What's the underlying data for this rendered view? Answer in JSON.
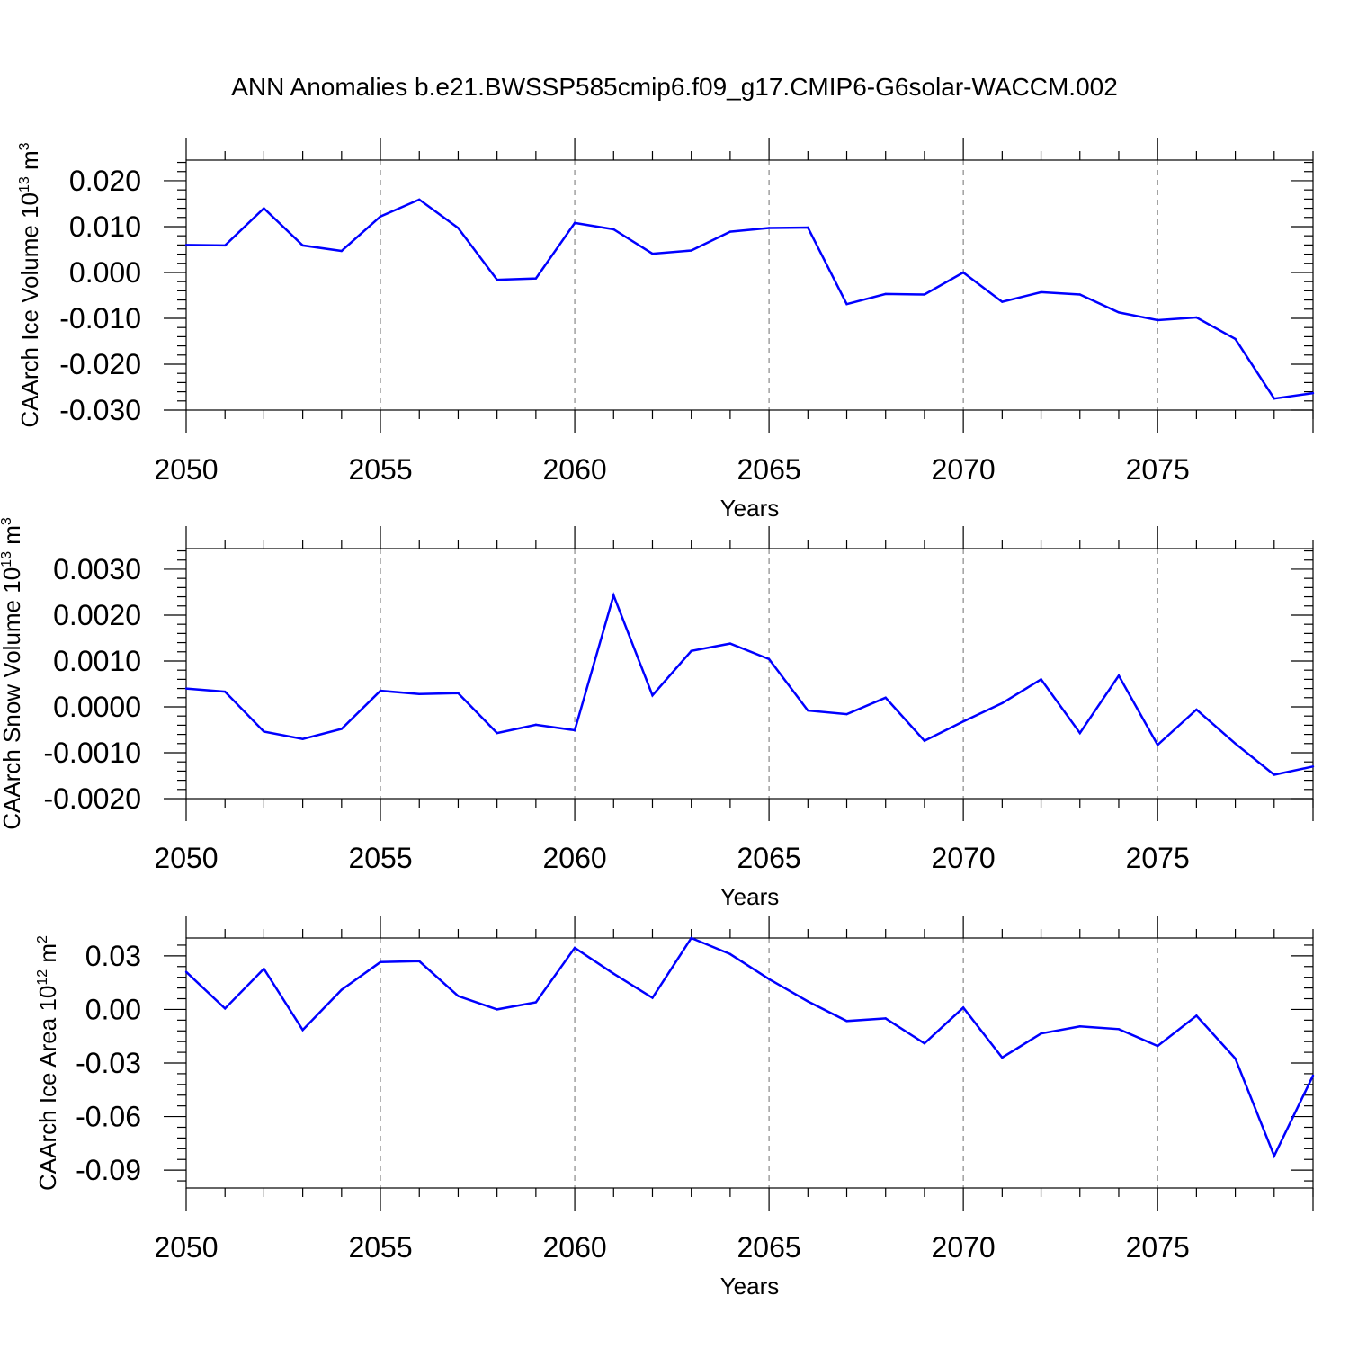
{
  "figure": {
    "title": "ANN Anomalies b.e21.BWSSP585cmip6.f09_g17.CMIP6-G6solar-WACCM.002"
  },
  "colors": {
    "series": "#0000ff",
    "grid": "#888888",
    "axes": "#000000"
  },
  "chart_data": [
    {
      "type": "line",
      "title": "ANN Anomalies b.e21.BWSSP585cmip6.f09_g17.CMIP6-G6solar-WACCM.002",
      "xlabel": "Years",
      "ylabel": "CAArch Ice Volume 10",
      "ylabel_exp": "13",
      "ylabel_unit": " m",
      "ylabel_unit_exp": "3",
      "xlim": [
        2050,
        2079
      ],
      "ylim": [
        -0.03,
        0.0245
      ],
      "xticks": [
        2050,
        2055,
        2060,
        2065,
        2070,
        2075
      ],
      "xtick_labels": [
        "2050",
        "2055",
        "2060",
        "2065",
        "2070",
        "2075"
      ],
      "yticks": [
        0.02,
        0.01,
        0.0,
        -0.01,
        -0.02,
        -0.03
      ],
      "ytick_labels": [
        "0.020",
        "0.010",
        "0.000",
        "-0.010",
        "-0.020",
        "-0.030"
      ],
      "grid": "vertical dashed at major x ticks",
      "x": [
        2050,
        2051,
        2052,
        2053,
        2054,
        2055,
        2056,
        2057,
        2058,
        2059,
        2060,
        2061,
        2062,
        2063,
        2064,
        2065,
        2066,
        2067,
        2068,
        2069,
        2070,
        2071,
        2072,
        2073,
        2074,
        2075,
        2076,
        2077,
        2078,
        2079
      ],
      "values": [
        0.006,
        0.0059,
        0.014,
        0.0059,
        0.0047,
        0.0122,
        0.0159,
        0.0097,
        -0.0016,
        -0.0013,
        0.0108,
        0.0094,
        0.0041,
        0.0048,
        0.0089,
        0.0097,
        0.0098,
        -0.0069,
        -0.0047,
        -0.0048,
        0.0,
        -0.0064,
        -0.0043,
        -0.0048,
        -0.0087,
        -0.0104,
        -0.0098,
        -0.0145,
        -0.0275,
        -0.0263
      ]
    },
    {
      "type": "line",
      "xlabel": "Years",
      "ylabel": "CAArch Snow Volume 10",
      "ylabel_exp": "13",
      "ylabel_unit": " m",
      "ylabel_unit_exp": "3",
      "xlim": [
        2050,
        2079
      ],
      "ylim": [
        -0.002,
        0.00345
      ],
      "xticks": [
        2050,
        2055,
        2060,
        2065,
        2070,
        2075
      ],
      "xtick_labels": [
        "2050",
        "2055",
        "2060",
        "2065",
        "2070",
        "2075"
      ],
      "yticks": [
        0.003,
        0.002,
        0.001,
        0.0,
        -0.001,
        -0.002
      ],
      "ytick_labels": [
        "0.0030",
        "0.0020",
        "0.0010",
        "0.0000",
        "-0.0010",
        "-0.0020"
      ],
      "grid": "vertical dashed at major x ticks",
      "x": [
        2050,
        2051,
        2052,
        2053,
        2054,
        2055,
        2056,
        2057,
        2058,
        2059,
        2060,
        2061,
        2062,
        2063,
        2064,
        2065,
        2066,
        2067,
        2068,
        2069,
        2070,
        2071,
        2072,
        2073,
        2074,
        2075,
        2076,
        2077,
        2078,
        2079
      ],
      "values": [
        0.0004,
        0.00033,
        -0.00054,
        -0.0007,
        -0.00048,
        0.00035,
        0.00028,
        0.0003,
        -0.00057,
        -0.00039,
        -0.00051,
        0.00243,
        0.00025,
        0.00122,
        0.00138,
        0.00104,
        -8e-05,
        -0.00016,
        0.0002,
        -0.00074,
        -0.00032,
        8e-05,
        0.0006,
        -0.00057,
        0.00068,
        -0.00083,
        -6e-05,
        -0.0008,
        -0.00148,
        -0.0013
      ]
    },
    {
      "type": "line",
      "xlabel": "Years",
      "ylabel": "CAArch Ice Area 10",
      "ylabel_exp": "12",
      "ylabel_unit": " m",
      "ylabel_unit_exp": "2",
      "xlim": [
        2050,
        2079
      ],
      "ylim": [
        -0.1,
        0.04
      ],
      "xticks": [
        2050,
        2055,
        2060,
        2065,
        2070,
        2075
      ],
      "xtick_labels": [
        "2050",
        "2055",
        "2060",
        "2065",
        "2070",
        "2075"
      ],
      "yticks": [
        0.03,
        0.0,
        -0.03,
        -0.06,
        -0.09
      ],
      "ytick_labels": [
        "0.03",
        "0.00",
        "-0.03",
        "-0.06",
        "-0.09"
      ],
      "grid": "vertical dashed at major x ticks",
      "x": [
        2050,
        2051,
        2052,
        2053,
        2054,
        2055,
        2056,
        2057,
        2058,
        2059,
        2060,
        2061,
        2062,
        2063,
        2064,
        2065,
        2066,
        2067,
        2068,
        2069,
        2070,
        2071,
        2072,
        2073,
        2074,
        2075,
        2076,
        2077,
        2078,
        2079
      ],
      "values": [
        0.021,
        0.0005,
        0.0228,
        -0.0115,
        0.011,
        0.0265,
        0.027,
        0.0075,
        0.0,
        0.004,
        0.0345,
        0.02,
        0.0065,
        0.04,
        0.031,
        0.017,
        0.0045,
        -0.0065,
        -0.005,
        -0.019,
        0.001,
        -0.027,
        -0.0135,
        -0.0095,
        -0.011,
        -0.0205,
        -0.0035,
        -0.0275,
        -0.082,
        -0.037
      ]
    }
  ]
}
